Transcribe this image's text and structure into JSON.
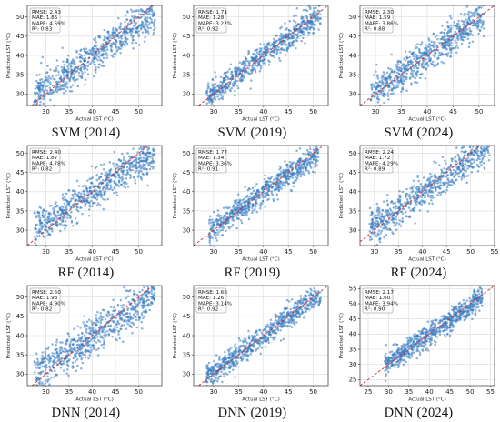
{
  "figure": {
    "point_color": "#3b7fc4",
    "diagonal_color": "#d62728",
    "grid_color": "#d9d9d9"
  },
  "chart_data": [
    {
      "type": "scatter",
      "caption": "SVM (2014)",
      "xlabel": "Actual LST (°C)",
      "ylabel": "Predicted LST (°C)",
      "xlim": [
        26,
        55
      ],
      "ylim": [
        27,
        53
      ],
      "xticks": [
        "30",
        "35",
        "40",
        "45",
        "50"
      ],
      "yticks": [
        "30",
        "35",
        "40",
        "45",
        "50"
      ],
      "metrics": [
        "RMSE: 2.43",
        "MAE: 1.85",
        "MAPE: 4.69%",
        "R²: 0.83"
      ],
      "grid": true,
      "diagonal": "y = x (dashed)",
      "sample": {
        "n": 700,
        "xmin": 27.5,
        "xmax": 53.5,
        "slope": 0.82,
        "intercept": 7.0,
        "noise": 2.4,
        "seed": 11
      }
    },
    {
      "type": "scatter",
      "caption": "SVM (2019)",
      "xlabel": "Actual LST (°C)",
      "ylabel": "Predicted LST (°C)",
      "xlim": [
        26,
        53
      ],
      "ylim": [
        27,
        53
      ],
      "xticks": [
        "30",
        "35",
        "40",
        "45",
        "50"
      ],
      "yticks": [
        "30",
        "35",
        "40",
        "45",
        "50"
      ],
      "metrics": [
        "RMSE: 1.71",
        "MAE: 1.28",
        "MAPE: 3.22%",
        "R²: 0.92"
      ],
      "grid": true,
      "diagonal": "y = x (dashed)",
      "sample": {
        "n": 700,
        "xmin": 28.5,
        "xmax": 51.5,
        "slope": 0.95,
        "intercept": 2.0,
        "noise": 1.7,
        "seed": 23
      }
    },
    {
      "type": "scatter",
      "caption": "SVM (2024)",
      "xlabel": "Actual LST (°C)",
      "ylabel": "Predicted LST (°C)",
      "xlim": [
        27,
        53
      ],
      "ylim": [
        27,
        53
      ],
      "xticks": [
        "30",
        "35",
        "40",
        "45",
        "50"
      ],
      "yticks": [
        "30",
        "35",
        "40",
        "45",
        "50"
      ],
      "metrics": [
        "RMSE: 2.30",
        "MAE: 1.59",
        "MAPE: 3.86%",
        "R²: 0.88"
      ],
      "grid": true,
      "diagonal": "y = x (dashed)",
      "sample": {
        "n": 700,
        "xmin": 29,
        "xmax": 51,
        "slope": 0.93,
        "intercept": 2.8,
        "noise": 2.2,
        "seed": 37
      }
    },
    {
      "type": "scatter",
      "caption": "RF (2014)",
      "xlabel": "Actual LST (°C)",
      "ylabel": "Predicted LST (°C)",
      "xlim": [
        26,
        55
      ],
      "ylim": [
        26,
        52
      ],
      "xticks": [
        "30",
        "35",
        "40",
        "45",
        "50"
      ],
      "yticks": [
        "30",
        "35",
        "40",
        "45",
        "50"
      ],
      "metrics": [
        "RMSE: 2.40",
        "MAE: 1.87",
        "MAPE: 4.78%",
        "R²: 0.82"
      ],
      "grid": true,
      "diagonal": "y = x (dashed)",
      "sample": {
        "n": 700,
        "xmin": 27.5,
        "xmax": 53.5,
        "slope": 0.78,
        "intercept": 8.5,
        "noise": 2.3,
        "seed": 41
      }
    },
    {
      "type": "scatter",
      "caption": "RF (2019)",
      "xlabel": "Actual LST (°C)",
      "ylabel": "Predicted LST (°C)",
      "xlim": [
        26,
        53
      ],
      "ylim": [
        26,
        52
      ],
      "xticks": [
        "30",
        "35",
        "40",
        "45",
        "50"
      ],
      "yticks": [
        "30",
        "35",
        "40",
        "45",
        "50"
      ],
      "metrics": [
        "RMSE: 1.77",
        "MAE: 1.34",
        "MAPE: 3.36%",
        "R²: 0.91"
      ],
      "grid": true,
      "diagonal": "y = x (dashed)",
      "sample": {
        "n": 700,
        "xmin": 29,
        "xmax": 51,
        "slope": 0.92,
        "intercept": 3.0,
        "noise": 1.7,
        "seed": 53
      }
    },
    {
      "type": "scatter",
      "caption": "RF (2024)",
      "xlabel": "Actual LST (°C)",
      "ylabel": "Predicted LST (°C)",
      "xlim": [
        27,
        55
      ],
      "ylim": [
        26,
        52
      ],
      "xticks": [
        "30",
        "35",
        "40",
        "45",
        "50",
        "55"
      ],
      "yticks": [
        "30",
        "35",
        "40",
        "45",
        "50"
      ],
      "metrics": [
        "RMSE: 2.24",
        "MAE: 1.72",
        "MAPE: 4.29%",
        "R²: 0.89"
      ],
      "grid": true,
      "diagonal": "y = x (dashed)",
      "sample": {
        "n": 700,
        "xmin": 29,
        "xmax": 54,
        "slope": 0.88,
        "intercept": 4.5,
        "noise": 2.1,
        "seed": 67
      }
    },
    {
      "type": "scatter",
      "caption": "DNN (2014)",
      "xlabel": "Actual LST (°C)",
      "ylabel": "Predicted LST (°C)",
      "xlim": [
        26,
        55
      ],
      "ylim": [
        27,
        53
      ],
      "xticks": [
        "30",
        "35",
        "40",
        "45",
        "50"
      ],
      "yticks": [
        "30",
        "35",
        "40",
        "45",
        "50"
      ],
      "metrics": [
        "RMSE: 2.50",
        "MAE: 1.93",
        "MAPE: 4.90%",
        "R²: 0.82"
      ],
      "grid": true,
      "diagonal": "y = x (dashed)",
      "sample": {
        "n": 700,
        "xmin": 27.5,
        "xmax": 53.5,
        "slope": 0.8,
        "intercept": 7.8,
        "noise": 2.5,
        "seed": 79
      }
    },
    {
      "type": "scatter",
      "caption": "DNN (2019)",
      "xlabel": "Actual LST (°C)",
      "ylabel": "Predicted LST (°C)",
      "xlim": [
        26,
        53
      ],
      "ylim": [
        27,
        53
      ],
      "xticks": [
        "30",
        "35",
        "40",
        "45",
        "50"
      ],
      "yticks": [
        "30",
        "35",
        "40",
        "45",
        "50"
      ],
      "metrics": [
        "RMSE: 1.66",
        "MAE: 1.26",
        "MAPE: 3.14%",
        "R²: 0.92"
      ],
      "grid": true,
      "diagonal": "y = x (dashed)",
      "sample": {
        "n": 700,
        "xmin": 28.5,
        "xmax": 51.5,
        "slope": 0.96,
        "intercept": 1.6,
        "noise": 1.6,
        "seed": 83
      }
    },
    {
      "type": "scatter",
      "caption": "DNN (2024)",
      "xlabel": "Actual LST (°C)",
      "ylabel": "Predicted LST (°C)",
      "xlim": [
        23,
        56
      ],
      "ylim": [
        23,
        56
      ],
      "xticks": [
        "25",
        "30",
        "35",
        "40",
        "45",
        "50",
        "55"
      ],
      "yticks": [
        "25",
        "30",
        "35",
        "40",
        "45",
        "50",
        "55"
      ],
      "metrics": [
        "RMSE: 2.17",
        "MAE: 1.60",
        "MAPE: 3.94%",
        "R²: 0.90"
      ],
      "grid": true,
      "diagonal": "y = x (dashed)",
      "sample": {
        "n": 700,
        "xmin": 29,
        "xmax": 53,
        "slope": 0.92,
        "intercept": 3.2,
        "noise": 2.0,
        "seed": 97
      }
    }
  ]
}
